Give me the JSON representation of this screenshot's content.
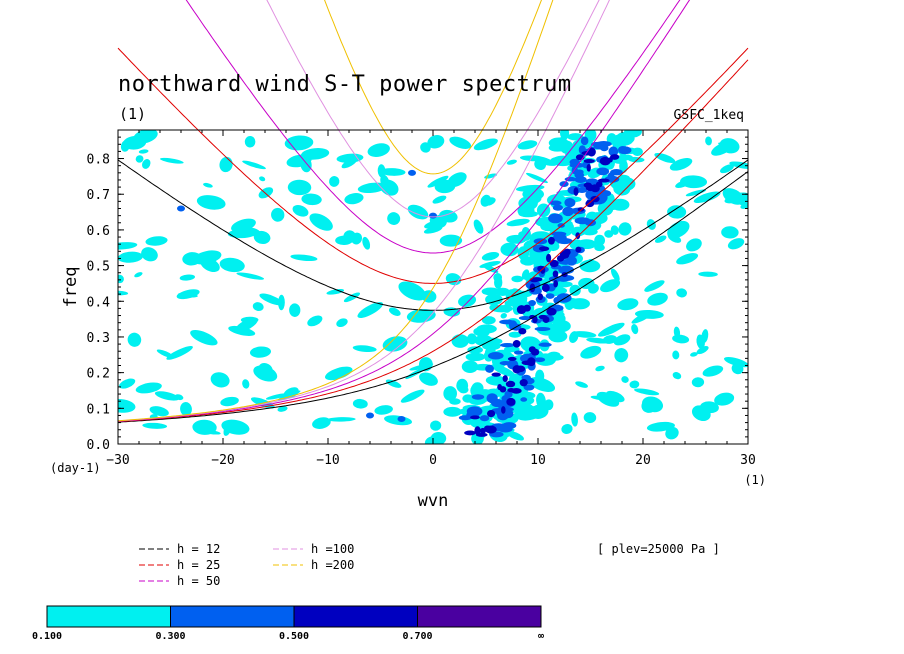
{
  "chart_data": {
    "type": "contour",
    "title": "northward wind S-T power spectrum",
    "subtitle": "(1)",
    "source_label": "GSFC_1keq",
    "xlabel": "wvn",
    "ylabel": "freq",
    "x_unit_label": "(1)",
    "y_unit_label": "(day-1)",
    "xlim": [
      -30,
      30
    ],
    "ylim": [
      0,
      0.88
    ],
    "x_ticks": [
      -30,
      -20,
      -10,
      0,
      10,
      20,
      30
    ],
    "x_tick_labels": [
      "−30",
      "−20",
      "−10",
      "0",
      "10",
      "20",
      "30"
    ],
    "y_ticks": [
      0,
      0.1,
      0.2,
      0.3,
      0.4,
      0.5,
      0.6,
      0.7,
      0.8
    ],
    "y_tick_labels": [
      "0.0",
      "0.1",
      "0.2",
      "0.3",
      "0.4",
      "0.5",
      "0.6",
      "0.7",
      "0.8"
    ],
    "annotation": "[ plev=25000 Pa ]",
    "dispersion_curves": [
      {
        "name": "h = 12",
        "color": "#000000",
        "label_color": "#000000",
        "h": 12
      },
      {
        "name": "h = 25",
        "color": "#e00000",
        "label_color": "#e00000",
        "h": 25
      },
      {
        "name": "h = 50",
        "color": "#c800c8",
        "label_color": "#c800c8",
        "h": 50
      },
      {
        "name": "h =100",
        "color": "#e090e0",
        "label_color": "#e090e0",
        "h": 100
      },
      {
        "name": "h =200",
        "color": "#f0c000",
        "label_color": "#f0c000",
        "h": 200
      }
    ],
    "contour_levels": {
      "boundaries": [
        "0.100",
        "0.300",
        "0.500",
        "0.700",
        "∞"
      ],
      "colors": [
        "#00f0f0",
        "#0060f0",
        "#0000c0",
        "#4a00a0"
      ]
    }
  }
}
